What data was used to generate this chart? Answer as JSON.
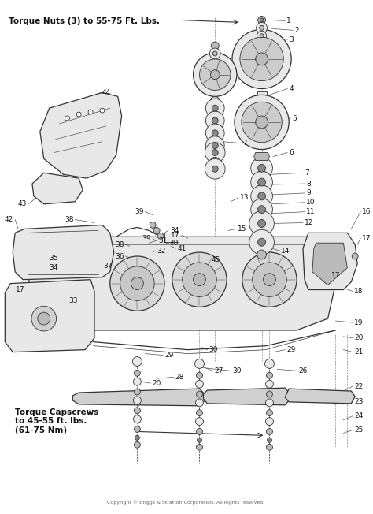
{
  "background_color": "#ffffff",
  "fig_width": 4.74,
  "fig_height": 6.52,
  "dpi": 100,
  "annotation_top_left": "Torque Nuts (3) to 55-75 Ft. Lbs.",
  "annotation_bottom_left": "Torque Capscrews\nto 45-55 ft. lbs.\n(61-75 Nm)",
  "copyright": "Copyright © Briggs & Stratton Corporation. All Rights reserved.",
  "line_color": "#333333",
  "fill_light": "#e8e8e8",
  "fill_mid": "#bbbbbb",
  "fill_dark": "#888888"
}
